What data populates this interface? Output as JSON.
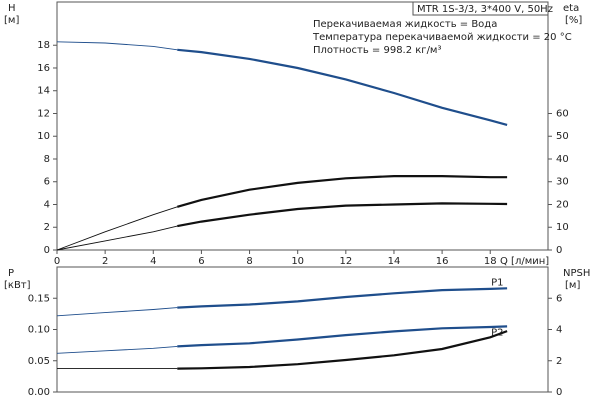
{
  "chart_data": [
    {
      "type": "line",
      "subtitle": "MTR 1S-3/3, 3*400 V, 50Hz",
      "annotations": [
        "Перекачиваемая жидкость = Вода",
        "Температура перекачиваемой жидкости = 20 °C",
        "Плотность = 998.2 кг/м³"
      ],
      "ylabel": "H",
      "yunit": "[м]",
      "y2label": "eta",
      "y2unit": "[%]",
      "xlabel": "Q [л/мин]",
      "xlim": [
        0,
        20.4
      ],
      "xticks": [
        0,
        2,
        4,
        6,
        8,
        10,
        12,
        14,
        16,
        18
      ],
      "ylim": [
        0,
        21.8
      ],
      "yticks": [
        0,
        2,
        4,
        6,
        8,
        10,
        12,
        14,
        16,
        18
      ],
      "y2lim": [
        0,
        109
      ],
      "y2ticks": [
        0,
        10,
        20,
        30,
        40,
        50,
        60
      ],
      "thick_from": 5,
      "x": [
        0,
        2,
        4,
        5,
        6,
        8,
        10,
        12,
        14,
        16,
        18,
        18.7
      ],
      "series": [
        {
          "color": "#1f4e8c",
          "values": [
            18.3,
            18.2,
            17.9,
            17.6,
            17.4,
            16.8,
            16.0,
            15.0,
            13.8,
            12.5,
            11.4,
            11.0
          ]
        },
        {
          "color": "#111111",
          "axis": "y2",
          "values": [
            0,
            8,
            15.5,
            19,
            22,
            26.5,
            29.5,
            31.5,
            32.5,
            32.5,
            32,
            32
          ]
        },
        {
          "color": "#111111",
          "axis": "y2",
          "values": [
            0,
            4,
            8,
            10.5,
            12.5,
            15.5,
            18,
            19.5,
            20,
            20.5,
            20.3,
            20.2
          ]
        }
      ]
    },
    {
      "type": "line",
      "ylabel": "P",
      "yunit": "[кВт]",
      "y2label": "NPSH",
      "y2unit": "[м]",
      "xlim": [
        0,
        20.4
      ],
      "ylim": [
        0,
        0.2
      ],
      "yticks": [
        {
          "value": 0,
          "label": "0.00"
        },
        {
          "value": 0.05,
          "label": "0.05"
        },
        {
          "value": 0.1,
          "label": "0.10"
        },
        {
          "value": 0.15,
          "label": "0.15"
        }
      ],
      "y2lim": [
        0,
        8
      ],
      "y2ticks": [
        0,
        2,
        4,
        6
      ],
      "thick_from": 5,
      "x": [
        0,
        2,
        4,
        5,
        6,
        8,
        10,
        12,
        14,
        16,
        18,
        18.7
      ],
      "series": [
        {
          "name": "P1",
          "color": "#1f4e8c",
          "values": [
            0.122,
            0.127,
            0.132,
            0.135,
            0.137,
            0.14,
            0.145,
            0.152,
            0.158,
            0.163,
            0.165,
            0.166
          ]
        },
        {
          "name": "P2",
          "color": "#1f4e8c",
          "values": [
            0.062,
            0.066,
            0.07,
            0.073,
            0.075,
            0.078,
            0.084,
            0.091,
            0.097,
            0.102,
            0.104,
            0.105
          ]
        },
        {
          "color": "#111111",
          "axis": "y2",
          "values": [
            1.5,
            1.5,
            1.5,
            1.5,
            1.52,
            1.6,
            1.78,
            2.05,
            2.35,
            2.75,
            3.5,
            3.9
          ]
        }
      ]
    }
  ]
}
